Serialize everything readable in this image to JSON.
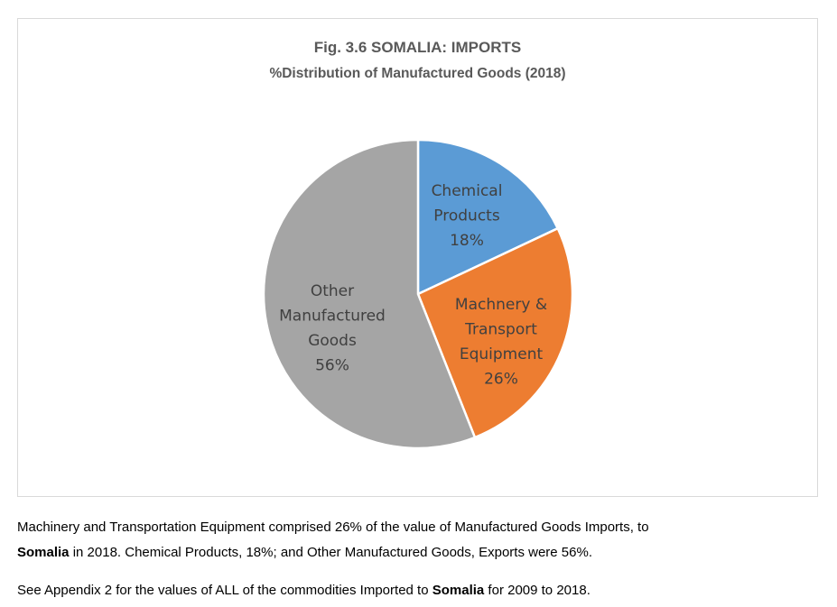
{
  "chart_data": {
    "type": "pie",
    "title": "Fig. 3.6 SOMALIA: IMPORTS",
    "subtitle": "%Distribution of Manufactured Goods  (2018)",
    "slices": [
      {
        "name": "Chemical Products",
        "label_lines": [
          "Chemical",
          "Products"
        ],
        "value": 18,
        "value_label": "18%",
        "color": "#5b9bd5"
      },
      {
        "name": "Machnery & Transport Equipment",
        "label_lines": [
          "Machnery &",
          "Transport",
          "Equipment"
        ],
        "value": 26,
        "value_label": "26%",
        "color": "#ed7d31"
      },
      {
        "name": "Other Manufactured Goods",
        "label_lines": [
          "Other",
          "Manufactured",
          "Goods"
        ],
        "value": 56,
        "value_label": "56%",
        "color": "#a5a5a5"
      }
    ]
  },
  "caption": {
    "line1": "Machinery and Transportation Equipment comprised 26% of the value of Manufactured Goods Imports, to",
    "line2_country": "Somalia",
    "line2_rest": " in 2018. Chemical Products, 18%; and Other Manufactured Goods, Exports were 56%.",
    "line3_prefix": "See Appendix 2 for the values of ALL of the commodities Imported to ",
    "line3_country": "Somalia",
    "line3_suffix": " for 2009 to 2018."
  }
}
